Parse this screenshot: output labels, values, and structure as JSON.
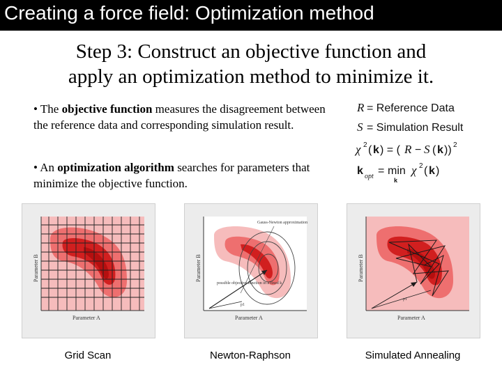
{
  "title": "Creating a force field: Optimization method",
  "heading_line1": "Step 3: Construct an objective function and",
  "heading_line2": "apply an optimization method to minimize it.",
  "bullets": [
    {
      "marker": "•",
      "pre": " The ",
      "bold": "objective function",
      "post": " measures the disagreement between the reference data and corresponding simulation result."
    },
    {
      "marker": "•",
      "pre": " An ",
      "bold": "optimization algorithm",
      "post": " searches for parameters that minimize the objective function."
    }
  ],
  "equations": {
    "r_sym": "R",
    "r_rhs": "= Reference Data",
    "s_sym": "S",
    "s_rhs": "= Simulation Result",
    "chi": "χ",
    "sq": "2",
    "k": "k",
    "opt": "opt",
    "min": "min"
  },
  "panels": [
    {
      "caption": "Grid Scan",
      "x_label": "Parameter A",
      "y_label": "Parameter B"
    },
    {
      "caption": "Newton-Raphson",
      "x_label": "Parameter A",
      "y_label": "Parameter B",
      "note_top": "Gauss-Newton approximation",
      "note_left": "possible objective function in a fixed k",
      "point": "p1"
    },
    {
      "caption": "Simulated Annealing",
      "x_label": "Parameter A",
      "y_label": "Parameter B",
      "point": "p1"
    }
  ],
  "colors": {
    "title_bg": "#000000",
    "title_fg": "#ffffff",
    "panel_bg": "#ececec",
    "field_light": "#f6bcbc",
    "field_mid": "#ee6f6f",
    "field_dark": "#d11f1f"
  }
}
